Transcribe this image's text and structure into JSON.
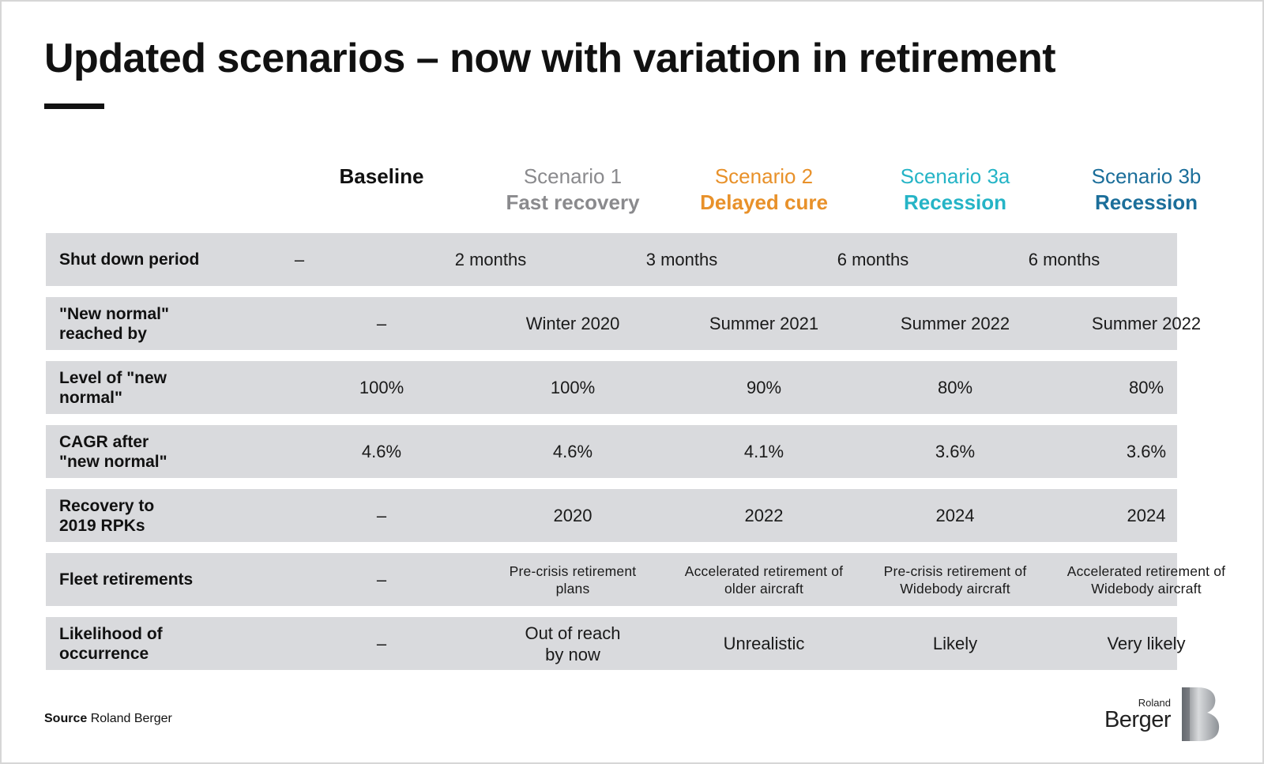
{
  "title": "Updated scenarios – now with variation in retirement",
  "colors": {
    "baseline": "#111111",
    "scenario1": "#8a8a8d",
    "scenario2": "#e8912a",
    "scenario3a": "#25b4c6",
    "scenario3b": "#1b6e9a",
    "row_bg": "#d9dadd"
  },
  "columns": [
    {
      "line1": "Baseline",
      "line2": ""
    },
    {
      "line1": "Scenario 1",
      "line2": "Fast recovery"
    },
    {
      "line1": "Scenario 2",
      "line2": "Delayed cure"
    },
    {
      "line1": "Scenario 3a",
      "line2": "Recession"
    },
    {
      "line1": "Scenario 3b",
      "line2": "Recession"
    }
  ],
  "rows": [
    {
      "label": "Shut down period",
      "values": [
        "–",
        "2 months",
        "3 months",
        "6 months",
        "6 months"
      ]
    },
    {
      "label": "\"New normal\" reached by",
      "values": [
        "–",
        "Winter 2020",
        "Summer 2021",
        "Summer 2022",
        "Summer 2022"
      ]
    },
    {
      "label": "Level of \"new normal\"",
      "values": [
        "100%",
        "100%",
        "90%",
        "80%",
        "80%"
      ]
    },
    {
      "label": "CAGR after \"new normal\"",
      "values": [
        "4.6%",
        "4.6%",
        "4.1%",
        "3.6%",
        "3.6%"
      ]
    },
    {
      "label": "Recovery to 2019 RPKs",
      "values": [
        "–",
        "2020",
        "2022",
        "2024",
        "2024"
      ]
    },
    {
      "label": "Fleet retirements",
      "values": [
        "–",
        "Pre-crisis retirement plans",
        "Accelerated retirement of older aircraft",
        "Pre-crisis retirement of Widebody aircraft",
        "Accelerated retirement of Widebody aircraft"
      ]
    },
    {
      "label": "Likelihood of occurrence",
      "values": [
        "–",
        "Out of reach by now",
        "Unrealistic",
        "Likely",
        "Very likely"
      ]
    }
  ],
  "source": {
    "label": "Source",
    "text": "Roland Berger"
  },
  "logo": {
    "line1": "Roland",
    "line2": "Berger",
    "icon": "roland-berger-b-logo-icon"
  }
}
